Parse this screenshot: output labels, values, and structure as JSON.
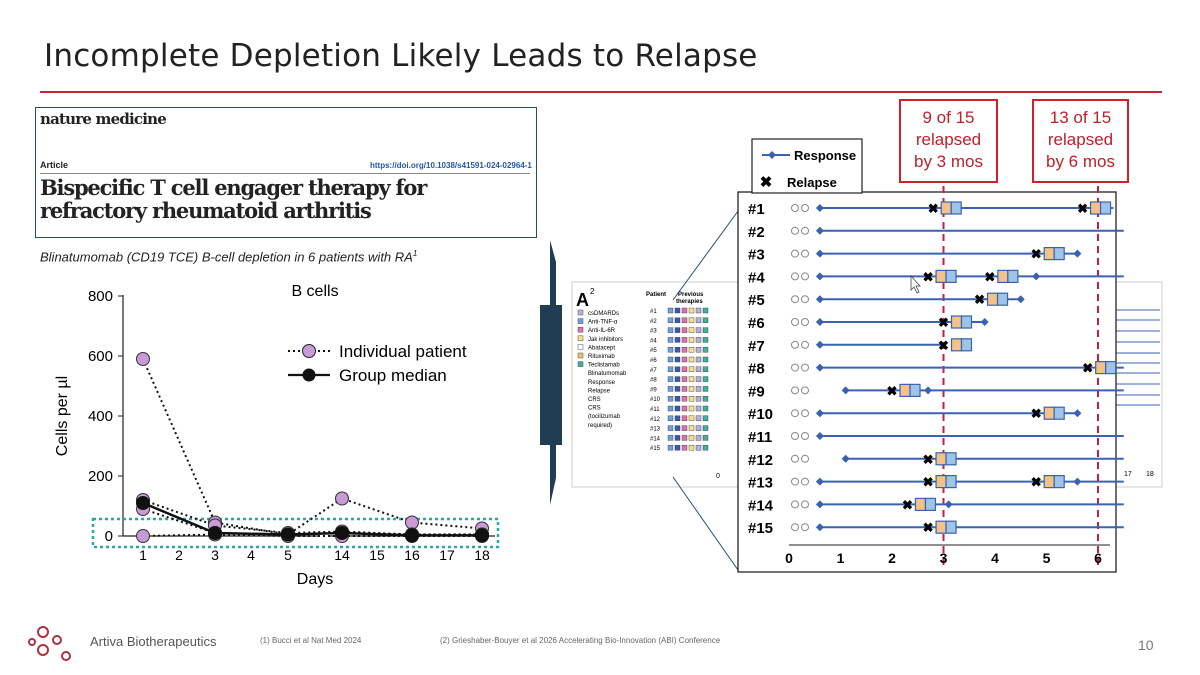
{
  "slide": {
    "title": "Incomplete Depletion Likely Leads to Relapse",
    "caption": "Blinatumomab (CD19 TCE) B-cell depletion in 6 patients with RA",
    "caption_sup": "1",
    "page_number": "10",
    "company": "Artiva Biotherapeutics",
    "footnote1": "(1)   Bucci et al Nat Med 2024",
    "footnote2": "(2) Grieshaber-Bouyer et al 2026 Accelerating Bio-Innovation (ABI) Conference",
    "accent_color": "#c0283a"
  },
  "paper": {
    "journal": "nature medicine",
    "article_label": "Article",
    "doi": "https://doi.org/10.1038/s41591-024-02964-1",
    "title_line1": "Bispecific T cell engager therapy for",
    "title_line2": "refractory rheumatoid arthritis"
  },
  "callouts": [
    {
      "line1": "9 of 15",
      "line2": "relapsed",
      "line3": "by 3 mos"
    },
    {
      "line1": "13 of 15",
      "line2": "relapsed",
      "line3": "by 6 mos"
    }
  ],
  "chart_data": [
    {
      "type": "scatter",
      "title": "B cells",
      "xlabel": "Days",
      "ylabel": "Cells per µl",
      "ylim": [
        0,
        800
      ],
      "yticks": [
        "0",
        "200",
        "400",
        "600",
        "800"
      ],
      "xticks": [
        "1",
        "2",
        "3",
        "4",
        "5",
        "14",
        "15",
        "16",
        "17",
        "18"
      ],
      "legend_position": "right",
      "series": [
        {
          "name": "Individual patient",
          "style": "dotted-purple",
          "lines": [
            {
              "x": [
                "1",
                "3",
                "5",
                "14",
                "16",
                "18"
              ],
              "y": [
                590,
                45,
                5,
                125,
                45,
                25
              ]
            },
            {
              "x": [
                "1",
                "3",
                "5",
                "14",
                "16",
                "18"
              ],
              "y": [
                120,
                35,
                10,
                15,
                5,
                5
              ]
            },
            {
              "x": [
                "1",
                "3",
                "5",
                "14",
                "16",
                "18"
              ],
              "y": [
                90,
                10,
                5,
                10,
                5,
                5
              ]
            },
            {
              "x": [
                "1",
                "3",
                "5",
                "14",
                "16",
                "18"
              ],
              "y": [
                0,
                5,
                0,
                0,
                0,
                0
              ]
            }
          ]
        },
        {
          "name": "Group median",
          "style": "solid-black",
          "x": [
            "1",
            "3",
            "5",
            "14",
            "16",
            "18"
          ],
          "y": [
            110,
            10,
            5,
            10,
            2,
            2
          ]
        }
      ]
    },
    {
      "type": "timeline",
      "xlabel": "",
      "xticks": [
        "0",
        "1",
        "2",
        "3",
        "4",
        "5",
        "6"
      ],
      "xlim": [
        0,
        6.5
      ],
      "reference_lines": [
        3,
        6
      ],
      "legend": [
        {
          "label": "Response",
          "marker": "blue-diamond-line"
        },
        {
          "label": "Relapse",
          "marker": "black-x"
        }
      ],
      "patients": [
        {
          "label": "#1",
          "response": 0.6,
          "relapses": [
            2.8,
            5.7
          ],
          "extra": [
            3.3
          ],
          "end": 6.3
        },
        {
          "label": "#2",
          "response": 0.6,
          "relapses": [],
          "end": 6.5
        },
        {
          "label": "#3",
          "response": 0.6,
          "relapses": [
            4.8
          ],
          "extra": [
            5.6
          ],
          "end": 5.6
        },
        {
          "label": "#4",
          "response": 0.6,
          "relapses": [
            2.7,
            3.9
          ],
          "extra": [
            3.2,
            4.8
          ],
          "end": 6.5
        },
        {
          "label": "#5",
          "response": 0.6,
          "relapses": [
            3.7
          ],
          "extra": [
            4.5
          ],
          "end": 4.5
        },
        {
          "label": "#6",
          "response": 0.6,
          "relapses": [
            3.0
          ],
          "extra": [
            3.8
          ],
          "end": 3.8
        },
        {
          "label": "#7",
          "response": 0.6,
          "relapses": [
            3.0
          ],
          "end": 3.0
        },
        {
          "label": "#8",
          "response": 0.6,
          "relapses": [
            5.8
          ],
          "end": 6.5
        },
        {
          "label": "#9",
          "response": 1.1,
          "relapses": [
            2.0
          ],
          "extra": [
            2.7
          ],
          "end": 6.5
        },
        {
          "label": "#10",
          "response": 0.6,
          "relapses": [
            4.8
          ],
          "extra": [
            5.6
          ],
          "end": 5.6
        },
        {
          "label": "#11",
          "response": 0.6,
          "relapses": [],
          "end": 6.5
        },
        {
          "label": "#12",
          "response": 1.1,
          "relapses": [
            2.7
          ],
          "extra": [
            3.2
          ],
          "end": 6.5
        },
        {
          "label": "#13",
          "response": 0.6,
          "relapses": [
            2.7,
            4.8
          ],
          "extra": [
            3.2,
            5.6
          ],
          "end": 6.5
        },
        {
          "label": "#14",
          "response": 0.6,
          "relapses": [
            2.3
          ],
          "extra": [
            3.1
          ],
          "end": 6.5
        },
        {
          "label": "#15",
          "response": 0.6,
          "relapses": [
            2.7
          ],
          "extra": [
            3.2
          ],
          "end": 6.5
        }
      ]
    }
  ],
  "inset": {
    "panel_letter": "A",
    "panel_sup": "2",
    "col_patient": "Patient",
    "col_previous": "Previous",
    "col_therapies": "therapies",
    "legend_items": [
      "csDMARDs",
      "Anti-TNF-α",
      "Anti-IL-6R",
      "Jak inhibitors",
      "Abatacept",
      "Rituximab",
      "Teclistamab",
      "Blinatumomab",
      "Response",
      "Relapse",
      "CRS",
      "CRS",
      "(tocilizumab",
      "required)"
    ],
    "patients": [
      "#1",
      "#2",
      "#3",
      "#4",
      "#5",
      "#6",
      "#7",
      "#8",
      "#9",
      "#10",
      "#11",
      "#12",
      "#13",
      "#14",
      "#15"
    ],
    "axis_zero": "0",
    "axis_right": [
      "17",
      "18"
    ]
  }
}
